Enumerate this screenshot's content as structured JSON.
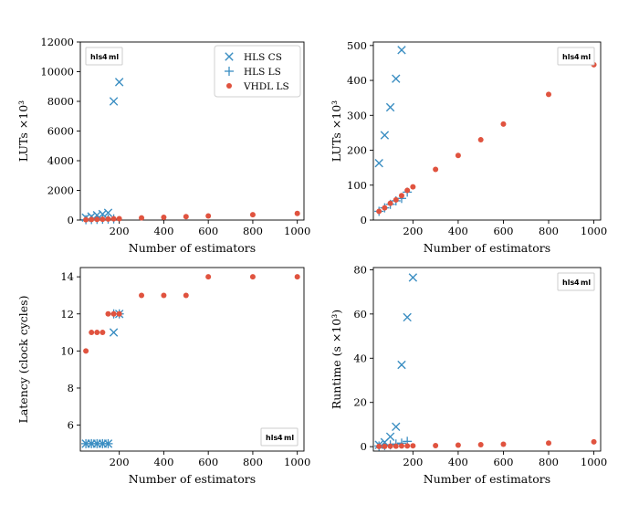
{
  "colors": {
    "hls_cs": "#3b8ec2",
    "hls_ls": "#3b8ec2",
    "vhdl_ls": "#e0533f",
    "badge_hls": "#7a2a8c",
    "badge_4": "#1a3a8a",
    "badge_ml": "#7a2a8c"
  },
  "badge": {
    "a": "hls",
    "b": "4",
    "c": "ml"
  },
  "chart_data": [
    {
      "type": "scatter",
      "xlabel": "Number of estimators",
      "ylabel": "LUTs ×10³",
      "xlim": [
        25,
        1030
      ],
      "ylim": [
        0,
        12000
      ],
      "xticks": [
        "200",
        "400",
        "600",
        "800",
        "1000"
      ],
      "yticks": [
        "0",
        "2000",
        "4000",
        "6000",
        "8000",
        "10000",
        "12000"
      ],
      "legend": {
        "position": "top-right",
        "entries": [
          "HLS CS",
          "HLS LS",
          "VHDL LS"
        ]
      },
      "badge_position": "top-left",
      "series": [
        {
          "name": "HLS CS",
          "marker": "x",
          "points": [
            [
              50,
              165
            ],
            [
              75,
              245
            ],
            [
              100,
              325
            ],
            [
              125,
              405
            ],
            [
              150,
              490
            ],
            [
              175,
              8000
            ],
            [
              200,
              9300
            ]
          ]
        },
        {
          "name": "HLS LS",
          "marker": "+",
          "points": [
            [
              50,
              25
            ],
            [
              75,
              35
            ],
            [
              100,
              45
            ],
            [
              125,
              55
            ],
            [
              150,
              65
            ],
            [
              175,
              80
            ]
          ]
        },
        {
          "name": "VHDL LS",
          "marker": "o",
          "points": [
            [
              50,
              25
            ],
            [
              75,
              35
            ],
            [
              100,
              45
            ],
            [
              125,
              55
            ],
            [
              150,
              70
            ],
            [
              175,
              85
            ],
            [
              200,
              95
            ],
            [
              300,
              145
            ],
            [
              400,
              185
            ],
            [
              500,
              230
            ],
            [
              600,
              275
            ],
            [
              800,
              360
            ],
            [
              1000,
              445
            ]
          ]
        }
      ]
    },
    {
      "type": "scatter",
      "xlabel": "Number of estimators",
      "ylabel": "LUTs ×10³",
      "xlim": [
        25,
        1030
      ],
      "ylim": [
        0,
        510
      ],
      "xticks": [
        "200",
        "400",
        "600",
        "800",
        "1000"
      ],
      "yticks": [
        "0",
        "100",
        "200",
        "300",
        "400",
        "500"
      ],
      "badge_position": "top-right",
      "series": [
        {
          "name": "HLS CS",
          "marker": "x",
          "points": [
            [
              50,
              163
            ],
            [
              75,
              243
            ],
            [
              100,
              323
            ],
            [
              125,
              405
            ],
            [
              150,
              487
            ]
          ]
        },
        {
          "name": "HLS LS",
          "marker": "+",
          "points": [
            [
              50,
              25
            ],
            [
              75,
              35
            ],
            [
              100,
              45
            ],
            [
              125,
              55
            ],
            [
              150,
              62
            ],
            [
              175,
              80
            ]
          ]
        },
        {
          "name": "VHDL LS",
          "marker": "o",
          "points": [
            [
              50,
              25
            ],
            [
              75,
              35
            ],
            [
              100,
              48
            ],
            [
              125,
              58
            ],
            [
              150,
              70
            ],
            [
              175,
              85
            ],
            [
              200,
              95
            ],
            [
              300,
              145
            ],
            [
              400,
              185
            ],
            [
              500,
              230
            ],
            [
              600,
              275
            ],
            [
              800,
              360
            ],
            [
              1000,
              445
            ]
          ]
        }
      ]
    },
    {
      "type": "scatter",
      "xlabel": "Number of estimators",
      "ylabel": "Latency (clock cycles)",
      "xlim": [
        25,
        1030
      ],
      "ylim": [
        4.6,
        14.5
      ],
      "xticks": [
        "200",
        "400",
        "600",
        "800",
        "1000"
      ],
      "yticks": [
        "6",
        "8",
        "10",
        "12",
        "14"
      ],
      "badge_position": "bottom-right",
      "series": [
        {
          "name": "HLS CS",
          "marker": "x",
          "points": [
            [
              50,
              5
            ],
            [
              75,
              5
            ],
            [
              100,
              5
            ],
            [
              125,
              5
            ],
            [
              150,
              5
            ],
            [
              175,
              11
            ],
            [
              200,
              12
            ]
          ]
        },
        {
          "name": "HLS LS",
          "marker": "+",
          "points": [
            [
              50,
              5
            ],
            [
              75,
              5
            ],
            [
              100,
              5
            ],
            [
              125,
              5
            ],
            [
              150,
              5
            ],
            [
              175,
              12
            ],
            [
              200,
              12
            ]
          ]
        },
        {
          "name": "VHDL LS",
          "marker": "o",
          "points": [
            [
              50,
              10
            ],
            [
              75,
              11
            ],
            [
              100,
              11
            ],
            [
              125,
              11
            ],
            [
              150,
              12
            ],
            [
              175,
              12
            ],
            [
              200,
              12
            ],
            [
              300,
              13
            ],
            [
              400,
              13
            ],
            [
              500,
              13
            ],
            [
              600,
              14
            ],
            [
              800,
              14
            ],
            [
              1000,
              14
            ]
          ]
        }
      ]
    },
    {
      "type": "scatter",
      "xlabel": "Number of estimators",
      "ylabel": "Runtime (s ×10³)",
      "xlim": [
        25,
        1030
      ],
      "ylim": [
        -2,
        81
      ],
      "xticks": [
        "200",
        "400",
        "600",
        "800",
        "1000"
      ],
      "yticks": [
        "0",
        "20",
        "40",
        "60",
        "80"
      ],
      "badge_position": "top-right",
      "series": [
        {
          "name": "HLS CS",
          "marker": "x",
          "points": [
            [
              50,
              0.8
            ],
            [
              75,
              2
            ],
            [
              100,
              4.5
            ],
            [
              125,
              9
            ],
            [
              150,
              37
            ],
            [
              175,
              58.5
            ],
            [
              200,
              76.5
            ]
          ]
        },
        {
          "name": "HLS LS",
          "marker": "+",
          "points": [
            [
              50,
              0.3
            ],
            [
              75,
              0.5
            ],
            [
              100,
              0.8
            ],
            [
              125,
              1.2
            ],
            [
              150,
              1.6
            ],
            [
              175,
              2.4
            ]
          ]
        },
        {
          "name": "VHDL LS",
          "marker": "o",
          "points": [
            [
              50,
              0.1
            ],
            [
              75,
              0.1
            ],
            [
              100,
              0.2
            ],
            [
              125,
              0.2
            ],
            [
              150,
              0.3
            ],
            [
              175,
              0.3
            ],
            [
              200,
              0.4
            ],
            [
              300,
              0.5
            ],
            [
              400,
              0.7
            ],
            [
              500,
              0.9
            ],
            [
              600,
              1.1
            ],
            [
              800,
              1.6
            ],
            [
              1000,
              2.2
            ]
          ]
        }
      ]
    }
  ]
}
